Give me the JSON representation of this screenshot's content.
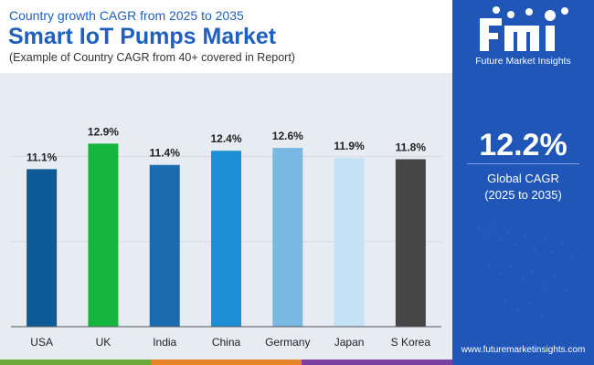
{
  "header": {
    "kicker": "Country growth CAGR from 2025 to 2035",
    "title": "Smart IoT Pumps Market",
    "subtitle": "(Example of Country CAGR from 40+ covered in Report)"
  },
  "side_panel": {
    "logo_letters": "fmi",
    "logo_name": "Future Market Insights",
    "cagr_value": "12.2%",
    "cagr_label": "Global CAGR",
    "cagr_period": "(2025 to 2035)",
    "website": "www.futuremarketinsights.com"
  },
  "colors": {
    "accent_blue": "#1f56b8",
    "title_blue": "#1f5fbf",
    "strip": [
      "#6aaa3a",
      "#e8832a",
      "#7b3fa0"
    ]
  },
  "chart_data": {
    "type": "bar",
    "categories": [
      "USA",
      "UK",
      "India",
      "China",
      "Germany",
      "Japan",
      "S Korea"
    ],
    "values": [
      11.1,
      12.9,
      11.4,
      12.4,
      12.6,
      11.9,
      11.8
    ],
    "data_labels": [
      "11.1%",
      "12.9%",
      "11.4%",
      "12.4%",
      "12.6%",
      "11.9%",
      "11.8%"
    ],
    "bar_colors": [
      "#0d5a96",
      "#16b63e",
      "#1a6bb0",
      "#1d8fd6",
      "#79b8e0",
      "#c4e1f5",
      "#454545"
    ],
    "ylim": [
      0,
      14
    ],
    "grid": true,
    "legend": "none",
    "title": "",
    "xlabel": "",
    "ylabel": ""
  }
}
